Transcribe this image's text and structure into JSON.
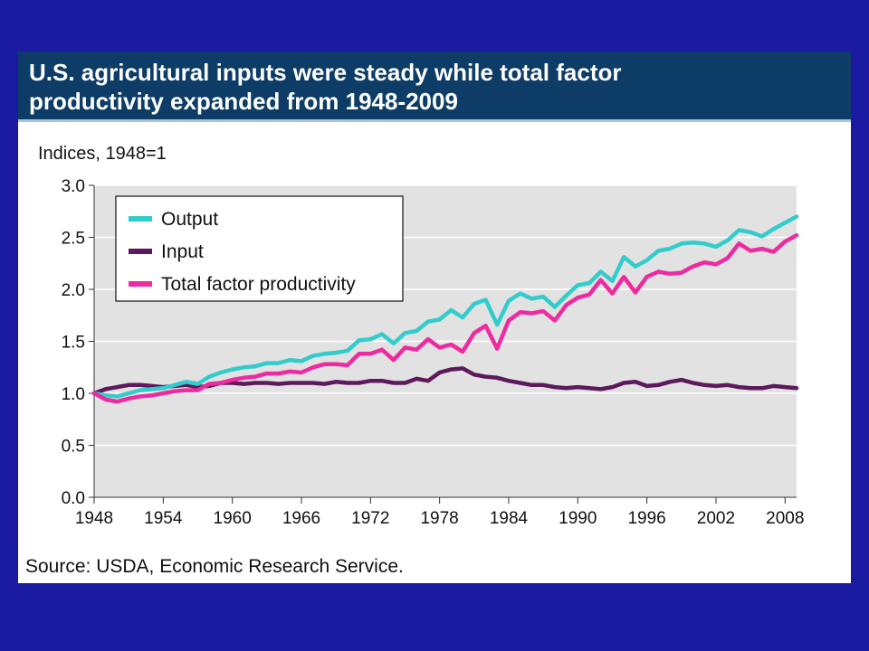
{
  "title_lines": [
    "U.S. agricultural inputs were steady while total factor",
    "productivity expanded from 1948-2009"
  ],
  "source": "Source: USDA, Economic Research Service.",
  "colors": {
    "background": "#1a1aa0",
    "title_bar": "#0d3d66",
    "plot_area": "#e2e2e2",
    "output": "#33cccc",
    "input": "#5c1a5c",
    "tfp": "#ee2aa0"
  },
  "chart_data": {
    "type": "line",
    "title": "U.S. agricultural inputs were steady while total factor productivity expanded from 1948-2009",
    "ylabel": "Indices, 1948=1",
    "xlabel": "",
    "xlim": [
      1948,
      2009
    ],
    "ylim": [
      0,
      3
    ],
    "grid": true,
    "legend_position": "top-left",
    "x_ticks": [
      "1948",
      "1954",
      "1960",
      "1966",
      "1972",
      "1978",
      "1984",
      "1990",
      "1996",
      "2002",
      "2008"
    ],
    "y_ticks": [
      "0.0",
      "0.5",
      "1.0",
      "1.5",
      "2.0",
      "2.5",
      "3.0"
    ],
    "x": [
      1948,
      1949,
      1950,
      1951,
      1952,
      1953,
      1954,
      1955,
      1956,
      1957,
      1958,
      1959,
      1960,
      1961,
      1962,
      1963,
      1964,
      1965,
      1966,
      1967,
      1968,
      1969,
      1970,
      1971,
      1972,
      1973,
      1974,
      1975,
      1976,
      1977,
      1978,
      1979,
      1980,
      1981,
      1982,
      1983,
      1984,
      1985,
      1986,
      1987,
      1988,
      1989,
      1990,
      1991,
      1992,
      1993,
      1994,
      1995,
      1996,
      1997,
      1998,
      1999,
      2000,
      2001,
      2002,
      2003,
      2004,
      2005,
      2006,
      2007,
      2008,
      2009
    ],
    "series": [
      {
        "name": "Output",
        "color": "#33cccc",
        "values": [
          1.0,
          0.98,
          0.97,
          1.0,
          1.03,
          1.04,
          1.05,
          1.08,
          1.11,
          1.09,
          1.16,
          1.2,
          1.23,
          1.25,
          1.26,
          1.29,
          1.29,
          1.32,
          1.31,
          1.36,
          1.38,
          1.39,
          1.41,
          1.51,
          1.52,
          1.57,
          1.48,
          1.58,
          1.6,
          1.69,
          1.71,
          1.8,
          1.73,
          1.86,
          1.9,
          1.66,
          1.89,
          1.96,
          1.91,
          1.93,
          1.83,
          1.94,
          2.04,
          2.06,
          2.17,
          2.08,
          2.31,
          2.22,
          2.28,
          2.37,
          2.39,
          2.44,
          2.45,
          2.44,
          2.41,
          2.47,
          2.57,
          2.55,
          2.51,
          2.58,
          2.64,
          2.7
        ]
      },
      {
        "name": "Input",
        "color": "#5c1a5c",
        "values": [
          1.0,
          1.04,
          1.06,
          1.08,
          1.08,
          1.07,
          1.06,
          1.07,
          1.08,
          1.06,
          1.07,
          1.1,
          1.1,
          1.09,
          1.1,
          1.1,
          1.09,
          1.1,
          1.1,
          1.1,
          1.09,
          1.11,
          1.1,
          1.1,
          1.12,
          1.12,
          1.1,
          1.1,
          1.14,
          1.12,
          1.2,
          1.23,
          1.24,
          1.18,
          1.16,
          1.15,
          1.12,
          1.1,
          1.08,
          1.08,
          1.06,
          1.05,
          1.06,
          1.05,
          1.04,
          1.06,
          1.1,
          1.11,
          1.07,
          1.08,
          1.11,
          1.13,
          1.1,
          1.08,
          1.07,
          1.08,
          1.06,
          1.05,
          1.05,
          1.07,
          1.06,
          1.05
        ]
      },
      {
        "name": "Total factor productivity",
        "color": "#ee2aa0",
        "values": [
          1.0,
          0.94,
          0.92,
          0.95,
          0.97,
          0.98,
          1.0,
          1.02,
          1.03,
          1.03,
          1.09,
          1.1,
          1.13,
          1.15,
          1.16,
          1.19,
          1.19,
          1.21,
          1.2,
          1.25,
          1.28,
          1.28,
          1.27,
          1.38,
          1.38,
          1.42,
          1.32,
          1.44,
          1.42,
          1.52,
          1.44,
          1.47,
          1.4,
          1.58,
          1.65,
          1.43,
          1.7,
          1.78,
          1.77,
          1.79,
          1.7,
          1.85,
          1.92,
          1.95,
          2.09,
          1.96,
          2.12,
          1.97,
          2.12,
          2.17,
          2.15,
          2.16,
          2.22,
          2.26,
          2.24,
          2.3,
          2.44,
          2.37,
          2.39,
          2.36,
          2.46,
          2.52
        ]
      }
    ]
  }
}
